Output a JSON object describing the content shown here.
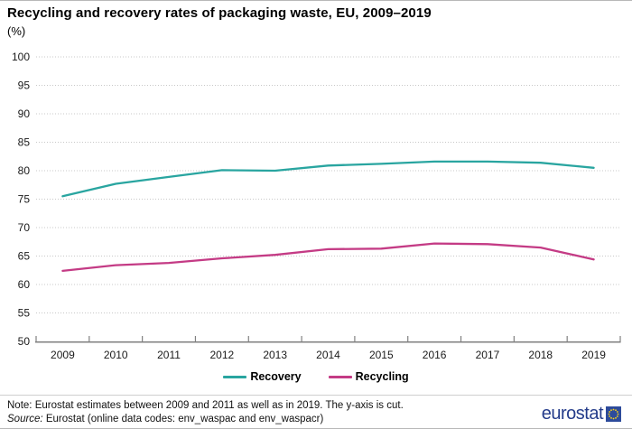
{
  "title": "Recycling and recovery rates of packaging waste, EU, 2009–2019",
  "subtitle": "(%)",
  "chart_data": {
    "type": "line",
    "categories": [
      "2009",
      "2010",
      "2011",
      "2012",
      "2013",
      "2014",
      "2015",
      "2016",
      "2017",
      "2018",
      "2019"
    ],
    "series": [
      {
        "name": "Recovery",
        "color": "#29A5A0",
        "values": [
          75.5,
          77.7,
          78.9,
          80.1,
          80.0,
          80.9,
          81.2,
          81.6,
          81.6,
          81.4,
          80.5
        ]
      },
      {
        "name": "Recycling",
        "color": "#C43B85",
        "values": [
          62.4,
          63.4,
          63.8,
          64.6,
          65.2,
          66.2,
          66.3,
          67.2,
          67.1,
          66.5,
          64.4
        ]
      }
    ],
    "title": "Recycling and recovery rates of packaging waste, EU, 2009–2019",
    "xlabel": "",
    "ylabel": "(%)",
    "ylim": [
      50,
      100
    ],
    "yticks": [
      50,
      55,
      60,
      65,
      70,
      75,
      80,
      85,
      90,
      95,
      100
    ],
    "grid": "horizontal-dotted",
    "legend_position": "bottom-center",
    "axis_note": "y-axis cut at 50"
  },
  "legend": {
    "items": [
      {
        "label": "Recovery",
        "color": "#29A5A0"
      },
      {
        "label": "Recycling",
        "color": "#C43B85"
      }
    ]
  },
  "footer": {
    "note_label": "Note:",
    "note_text": "Eurostat estimates between 2009 and 2011 as well as in 2019. The y-axis is cut.",
    "source_label": "Source:",
    "source_text": "Eurostat (online data codes: env_waspac and env_waspacr)",
    "logo_text": "eurostat"
  },
  "colors": {
    "gridline": "#c8c8c8",
    "axis": "#808080",
    "tick_label": "#1a1a1a",
    "logo_blue": "#233B8A",
    "emblem_blue": "#2D4B9B",
    "emblem_star": "#FFD617"
  }
}
